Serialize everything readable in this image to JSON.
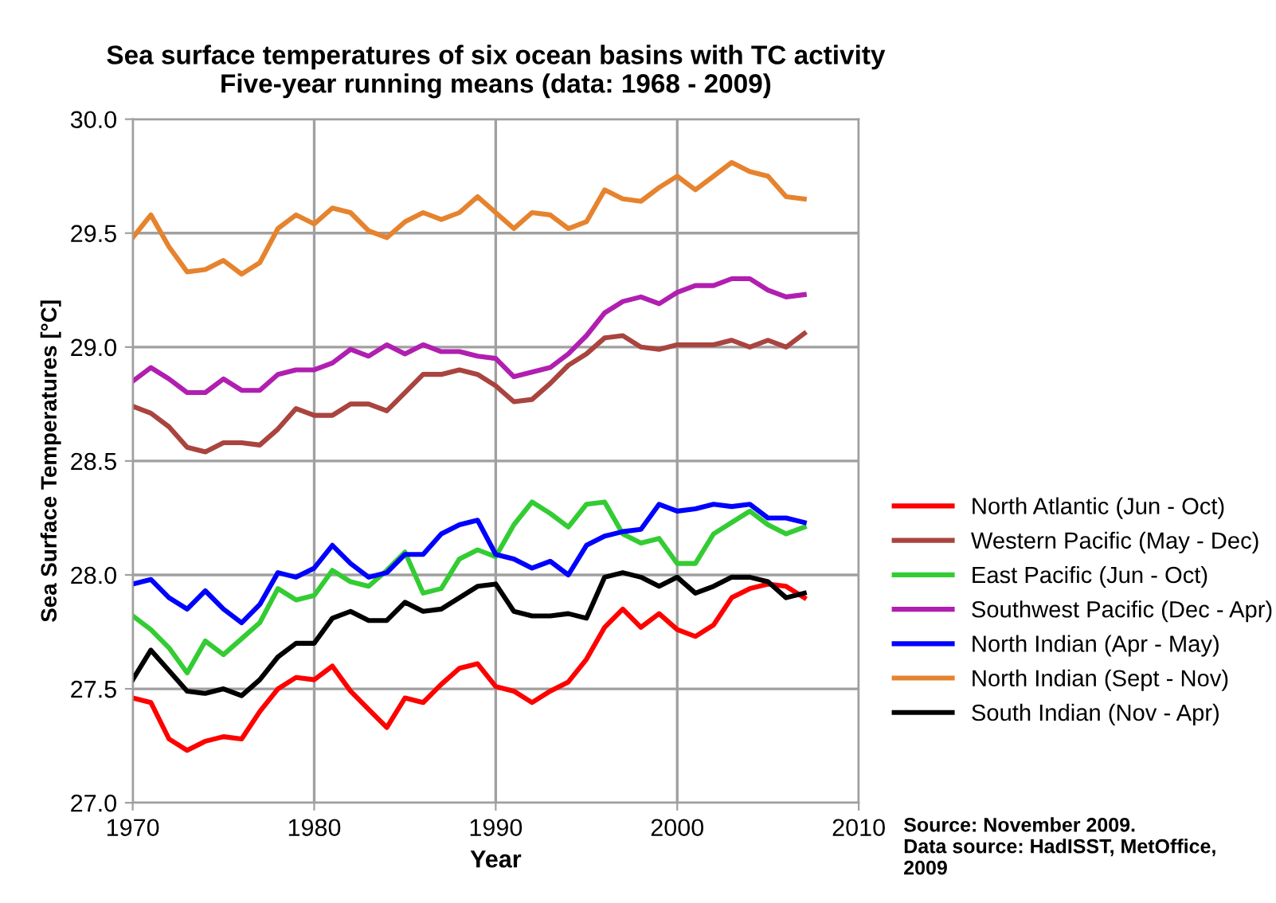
{
  "chart_data": {
    "type": "line",
    "title": "Sea surface temperatures of six ocean basins with TC activity\nFive-year running means (data: 1968 - 2009)",
    "xlabel": "Year",
    "ylabel": "Sea Surface Temperatures [°C]",
    "x": [
      1970,
      1971,
      1972,
      1973,
      1974,
      1975,
      1976,
      1977,
      1978,
      1979,
      1980,
      1981,
      1982,
      1983,
      1984,
      1985,
      1986,
      1987,
      1988,
      1989,
      1990,
      1991,
      1992,
      1993,
      1994,
      1995,
      1996,
      1997,
      1998,
      1999,
      2000,
      2001,
      2002,
      2003,
      2004,
      2005,
      2006,
      2007
    ],
    "series": [
      {
        "name": "North Atlantic (Jun - Oct)",
        "color": "#ff0000",
        "values": [
          27.46,
          27.44,
          27.28,
          27.23,
          27.27,
          27.29,
          27.28,
          27.4,
          27.5,
          27.55,
          27.54,
          27.6,
          27.49,
          27.41,
          27.33,
          27.46,
          27.44,
          27.52,
          27.59,
          27.61,
          27.51,
          27.49,
          27.44,
          27.49,
          27.53,
          27.63,
          27.77,
          27.85,
          27.77,
          27.83,
          27.76,
          27.73,
          27.78,
          27.9,
          27.94,
          27.96,
          27.95,
          27.9
        ]
      },
      {
        "name": "Western Pacific (May - Dec)",
        "color": "#a9443f",
        "values": [
          28.74,
          28.71,
          28.65,
          28.56,
          28.54,
          28.58,
          28.58,
          28.57,
          28.64,
          28.73,
          28.7,
          28.7,
          28.75,
          28.75,
          28.72,
          28.8,
          28.88,
          28.88,
          28.9,
          28.88,
          28.83,
          28.76,
          28.77,
          28.84,
          28.92,
          28.97,
          29.04,
          29.05,
          29.0,
          28.99,
          29.01,
          29.01,
          29.01,
          29.03,
          29.0,
          29.03,
          29.0,
          29.06
        ]
      },
      {
        "name": "East Pacific (Jun - Oct)",
        "color": "#33cc33",
        "values": [
          27.82,
          27.76,
          27.68,
          27.57,
          27.71,
          27.65,
          27.72,
          27.79,
          27.94,
          27.89,
          27.91,
          28.02,
          27.97,
          27.95,
          28.02,
          28.1,
          27.92,
          27.94,
          28.07,
          28.11,
          28.08,
          28.22,
          28.32,
          28.27,
          28.21,
          28.31,
          28.32,
          28.18,
          28.14,
          28.16,
          28.05,
          28.05,
          28.18,
          28.23,
          28.28,
          28.22,
          28.18,
          28.21
        ]
      },
      {
        "name": "Southwest Pacific (Dec - Apr)",
        "color": "#b01fb0",
        "values": [
          28.85,
          28.91,
          28.86,
          28.8,
          28.8,
          28.86,
          28.81,
          28.81,
          28.88,
          28.9,
          28.9,
          28.93,
          28.99,
          28.96,
          29.01,
          28.97,
          29.01,
          28.98,
          28.98,
          28.96,
          28.95,
          28.87,
          28.89,
          28.91,
          28.97,
          29.05,
          29.15,
          29.2,
          29.22,
          29.19,
          29.24,
          29.27,
          29.27,
          29.3,
          29.3,
          29.25,
          29.22,
          29.23
        ]
      },
      {
        "name": "North Indian (Apr - May)",
        "color": "#0000ff",
        "values": [
          27.96,
          27.98,
          27.9,
          27.85,
          27.93,
          27.85,
          27.79,
          27.87,
          28.01,
          27.99,
          28.03,
          28.13,
          28.05,
          27.99,
          28.01,
          28.09,
          28.09,
          28.18,
          28.22,
          28.24,
          28.09,
          28.07,
          28.03,
          28.06,
          28.0,
          28.13,
          28.17,
          28.19,
          28.2,
          28.31,
          28.28,
          28.29,
          28.31,
          28.3,
          28.31,
          28.25,
          28.25,
          28.23
        ]
      },
      {
        "name": "North Indian (Sept - Nov)",
        "color": "#e6832e",
        "values": [
          29.48,
          29.58,
          29.44,
          29.33,
          29.34,
          29.38,
          29.32,
          29.37,
          29.52,
          29.58,
          29.54,
          29.61,
          29.59,
          29.51,
          29.48,
          29.55,
          29.59,
          29.56,
          29.59,
          29.66,
          29.59,
          29.52,
          29.59,
          29.58,
          29.52,
          29.55,
          29.69,
          29.65,
          29.64,
          29.7,
          29.75,
          29.69,
          29.75,
          29.81,
          29.77,
          29.75,
          29.66,
          29.65
        ]
      },
      {
        "name": "South Indian (Nov - Apr)",
        "color": "#000000",
        "values": [
          27.54,
          27.67,
          27.58,
          27.49,
          27.48,
          27.5,
          27.47,
          27.54,
          27.64,
          27.7,
          27.7,
          27.81,
          27.84,
          27.8,
          27.8,
          27.88,
          27.84,
          27.85,
          27.9,
          27.95,
          27.96,
          27.84,
          27.82,
          27.82,
          27.83,
          27.81,
          27.99,
          28.01,
          27.99,
          27.95,
          27.99,
          27.92,
          27.95,
          27.99,
          27.99,
          27.97,
          27.9,
          27.92
        ]
      }
    ],
    "xlim": [
      1970,
      2010
    ],
    "xticks": [
      1970,
      1980,
      1990,
      2000,
      2010
    ],
    "ylim": [
      27.0,
      30.0
    ],
    "yticks": [
      {
        "value": 27.0,
        "label": "27.0"
      },
      {
        "value": 27.5,
        "label": "27.5"
      },
      {
        "value": 28.0,
        "label": "28.0"
      },
      {
        "value": 28.5,
        "label": "28.5"
      },
      {
        "value": 29.0,
        "label": "29.0"
      },
      {
        "value": 29.5,
        "label": "29.5"
      },
      {
        "value": 30.0,
        "label": "30.0"
      }
    ],
    "grid": true,
    "legend": "right",
    "marker": "none",
    "line_style": "solid",
    "annotations": [
      "Source: November 2009.\nData source: HadISST, MetOffice,\n2009"
    ]
  }
}
